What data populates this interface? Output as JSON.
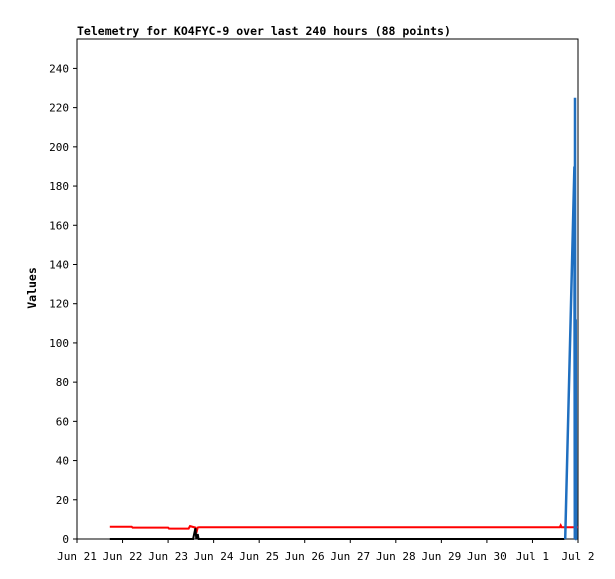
{
  "chart_data": {
    "type": "line",
    "title": "Telemetry for KO4FYC-9 over last 240 hours (88 points)",
    "ylabel": "Values",
    "xlabel": "",
    "x_ticks": [
      "Jun 21",
      "Jun 22",
      "Jun 23",
      "Jun 24",
      "Jun 25",
      "Jun 26",
      "Jun 27",
      "Jun 28",
      "Jun 29",
      "Jun 30",
      "Jul 1",
      "Jul 2"
    ],
    "y_ticks": [
      0,
      20,
      40,
      60,
      80,
      100,
      120,
      140,
      160,
      180,
      200,
      220,
      240
    ],
    "xlim": [
      0,
      11
    ],
    "ylim": [
      0,
      255
    ],
    "grid": false,
    "legend": "none",
    "series": [
      {
        "color": "#ff0000",
        "x": [
          0.72,
          1.2,
          1.22,
          2.0,
          2.02,
          2.45,
          2.48,
          2.6,
          2.62,
          2.65,
          2.68,
          10.6,
          10.62,
          10.64,
          11.0
        ],
        "y": [
          6.2,
          6.2,
          5.8,
          5.8,
          5.3,
          5.3,
          6.6,
          5.8,
          3.0,
          5.8,
          6.0,
          6.0,
          7.0,
          6.0,
          6.0
        ]
      },
      {
        "color": "#000000",
        "x": [
          0.72,
          2.55,
          2.6,
          2.62,
          2.65,
          2.67,
          10.7
        ],
        "y": [
          0,
          0,
          5.5,
          0,
          2.5,
          0,
          0
        ]
      },
      {
        "color": "#1f6fc0",
        "x": [
          10.72,
          10.92,
          10.93,
          10.935,
          10.94,
          10.95,
          10.96,
          10.97
        ],
        "y": [
          0,
          190,
          0,
          225,
          0,
          112,
          0,
          0
        ]
      }
    ]
  }
}
